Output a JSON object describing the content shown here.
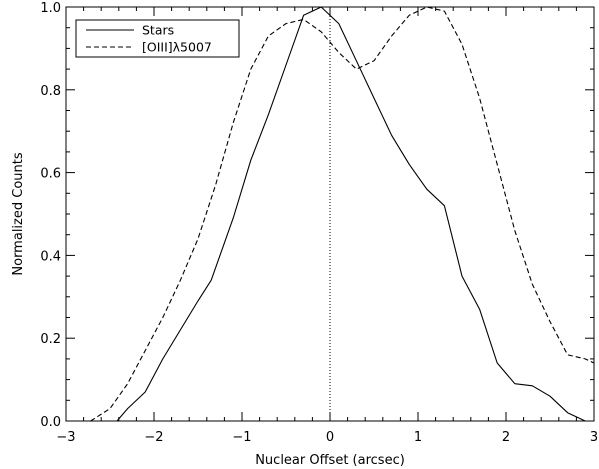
{
  "chart_data": {
    "type": "line",
    "xlabel": "Nuclear Offset (arcsec)",
    "ylabel": "Normalized Counts",
    "xlim": [
      -3,
      3
    ],
    "ylim": [
      0,
      1.0
    ],
    "xticks": [
      -3,
      -2,
      -1,
      0,
      1,
      2,
      3
    ],
    "xtick_labels": [
      "−3",
      "−2",
      "−1",
      "0",
      "1",
      "2",
      "3"
    ],
    "yticks": [
      0,
      0.2,
      0.4,
      0.6,
      0.8,
      1.0
    ],
    "ytick_labels": [
      "0.0",
      "0.2",
      "0.4",
      "0.6",
      "0.8",
      "1.0"
    ],
    "grid": false,
    "legend_position": "top-left",
    "reference_line": {
      "x": 0,
      "style": "dotted"
    },
    "series": [
      {
        "name": "Stars",
        "style": "solid",
        "x": [
          -2.42,
          -2.3,
          -2.1,
          -1.9,
          -1.7,
          -1.5,
          -1.35,
          -1.1,
          -0.9,
          -0.7,
          -0.5,
          -0.3,
          -0.1,
          0.1,
          0.3,
          0.5,
          0.7,
          0.9,
          1.1,
          1.3,
          1.5,
          1.7,
          1.9,
          2.1,
          2.3,
          2.5,
          2.7,
          2.9
        ],
        "y": [
          0.0,
          0.03,
          0.07,
          0.15,
          0.22,
          0.29,
          0.34,
          0.49,
          0.63,
          0.74,
          0.86,
          0.98,
          1.0,
          0.96,
          0.87,
          0.78,
          0.69,
          0.62,
          0.56,
          0.52,
          0.35,
          0.27,
          0.14,
          0.09,
          0.085,
          0.06,
          0.02,
          0.0
        ]
      },
      {
        "name": "[OIII]λ5007",
        "style": "dashed",
        "x": [
          -2.72,
          -2.5,
          -2.3,
          -2.1,
          -1.9,
          -1.7,
          -1.5,
          -1.3,
          -1.1,
          -0.9,
          -0.7,
          -0.5,
          -0.3,
          -0.1,
          0.1,
          0.3,
          0.5,
          0.7,
          0.9,
          1.1,
          1.3,
          1.5,
          1.7,
          1.9,
          2.1,
          2.3,
          2.5,
          2.7,
          2.9,
          3.0
        ],
        "y": [
          0.0,
          0.03,
          0.09,
          0.17,
          0.25,
          0.34,
          0.44,
          0.57,
          0.72,
          0.85,
          0.93,
          0.96,
          0.97,
          0.94,
          0.89,
          0.85,
          0.87,
          0.93,
          0.98,
          1.0,
          0.99,
          0.91,
          0.78,
          0.62,
          0.46,
          0.33,
          0.24,
          0.16,
          0.15,
          0.14
        ]
      }
    ]
  }
}
